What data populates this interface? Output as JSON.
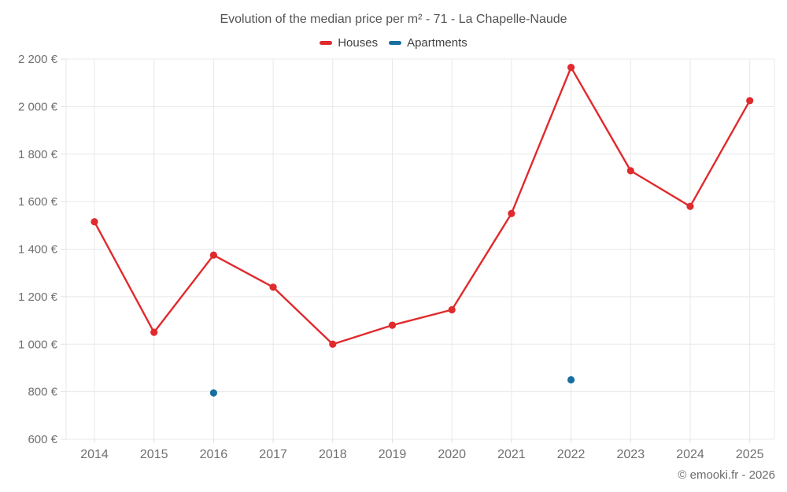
{
  "title": "Evolution of the median price per m² - 71 - La Chapelle-Naude",
  "footer": "© emooki.fr - 2026",
  "colors": {
    "houses": "#e02a2d",
    "apartments": "#176fa0",
    "grid": "#e8e8e8",
    "tick": "#e0e0e0",
    "title_text": "#545454",
    "axis_text": "#707070"
  },
  "chart_data": {
    "type": "line",
    "title": "Evolution of the median price per m² - 71 - La Chapelle-Naude",
    "categories": [
      "2014",
      "2015",
      "2016",
      "2017",
      "2018",
      "2019",
      "2020",
      "2021",
      "2022",
      "2023",
      "2024",
      "2025"
    ],
    "series": [
      {
        "name": "Houses",
        "color": "#e02a2d",
        "values": [
          1515,
          1050,
          1375,
          1240,
          1000,
          1080,
          1145,
          1550,
          2165,
          1730,
          1580,
          2025
        ]
      },
      {
        "name": "Apartments",
        "color": "#176fa0",
        "values": [
          null,
          null,
          795,
          null,
          null,
          null,
          null,
          null,
          850,
          null,
          null,
          null
        ]
      }
    ],
    "xlabel": "",
    "ylabel": "",
    "ylim": [
      600,
      2200
    ],
    "ytick_step": 200,
    "ytick_labels": [
      "600 €",
      "800 €",
      "1 000 €",
      "1 200 €",
      "1 400 €",
      "1 600 €",
      "1 800 €",
      "2 000 €",
      "2 200 €"
    ],
    "grid": true,
    "legend_position": "top",
    "currency": "€"
  }
}
